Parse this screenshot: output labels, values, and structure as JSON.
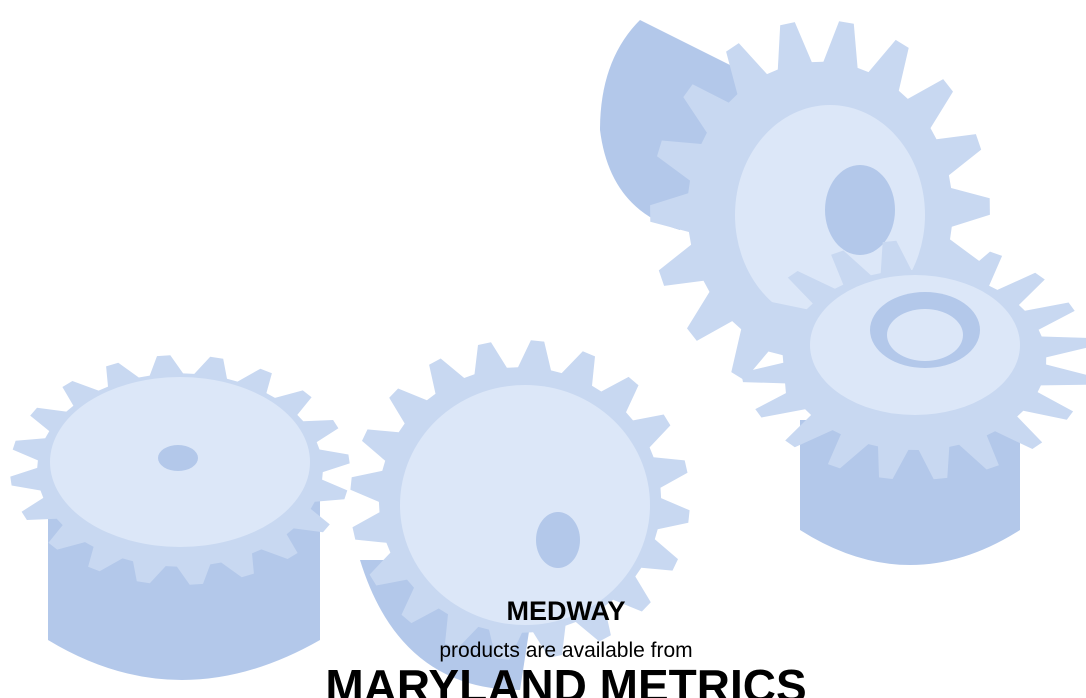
{
  "brand": "MEDWAY",
  "tagline": "products are available from",
  "company": "MARYLAND METRICS"
}
